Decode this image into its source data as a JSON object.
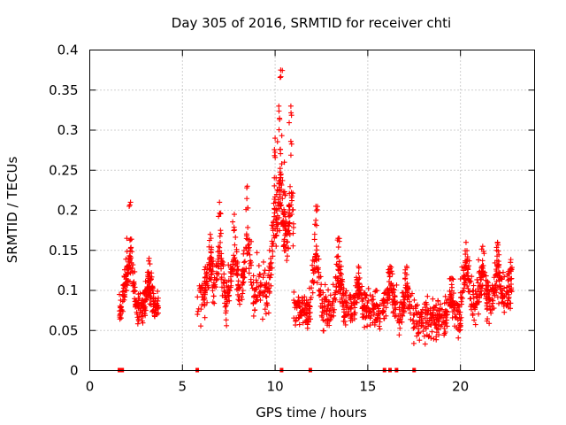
{
  "chart_data": {
    "type": "scatter",
    "title": "Day 305 of 2016, SRMTID for receiver chti",
    "xlabel": "GPS time / hours",
    "ylabel": "SRMTID / TECUs",
    "xlim": [
      0,
      24
    ],
    "ylim": [
      0,
      0.4
    ],
    "xticks": [
      0,
      5,
      10,
      15,
      20
    ],
    "yticks": [
      0,
      0.05,
      0.1,
      0.15,
      0.2,
      0.25,
      0.3,
      0.35,
      0.4
    ],
    "grid": true,
    "marker": "plus",
    "color": "#ff0000",
    "segments": [
      {
        "x_start": 1.6,
        "x_end": 3.7,
        "base": 0.075,
        "spread": 0.025,
        "density": 110,
        "peaks": [
          {
            "x": 2.2,
            "y": 0.21
          },
          {
            "x": 2.0,
            "y": 0.165
          },
          {
            "x": 3.2,
            "y": 0.14
          }
        ]
      },
      {
        "x_start": 5.8,
        "x_end": 9.0,
        "base": 0.09,
        "spread": 0.035,
        "density": 85,
        "peaks": [
          {
            "x": 7.0,
            "y": 0.21
          },
          {
            "x": 8.5,
            "y": 0.23
          },
          {
            "x": 7.8,
            "y": 0.195
          },
          {
            "x": 6.5,
            "y": 0.17
          }
        ]
      },
      {
        "x_start": 9.0,
        "x_end": 11.0,
        "base": 0.1,
        "spread": 0.04,
        "density": 95,
        "peaks": [
          {
            "x": 10.3,
            "y": 0.375
          },
          {
            "x": 10.2,
            "y": 0.33
          },
          {
            "x": 10.85,
            "y": 0.33
          },
          {
            "x": 10.0,
            "y": 0.29
          },
          {
            "x": 10.5,
            "y": 0.26
          }
        ]
      },
      {
        "x_start": 11.0,
        "x_end": 16.6,
        "base": 0.075,
        "spread": 0.03,
        "density": 85,
        "peaks": [
          {
            "x": 12.2,
            "y": 0.205
          },
          {
            "x": 13.4,
            "y": 0.165
          },
          {
            "x": 14.5,
            "y": 0.13
          },
          {
            "x": 16.2,
            "y": 0.13
          }
        ]
      },
      {
        "x_start": 16.6,
        "x_end": 20.0,
        "base": 0.065,
        "spread": 0.028,
        "density": 80,
        "peaks": [
          {
            "x": 17.1,
            "y": 0.13
          },
          {
            "x": 19.5,
            "y": 0.115
          }
        ]
      },
      {
        "x_start": 20.0,
        "x_end": 22.8,
        "base": 0.085,
        "spread": 0.035,
        "density": 90,
        "peaks": [
          {
            "x": 20.3,
            "y": 0.16
          },
          {
            "x": 21.2,
            "y": 0.155
          },
          {
            "x": 22.0,
            "y": 0.16
          },
          {
            "x": 22.7,
            "y": 0.135
          }
        ]
      }
    ],
    "zero_markers": [
      1.6,
      1.75,
      5.8,
      10.35,
      11.9,
      15.9,
      16.2,
      16.55,
      17.5
    ]
  }
}
